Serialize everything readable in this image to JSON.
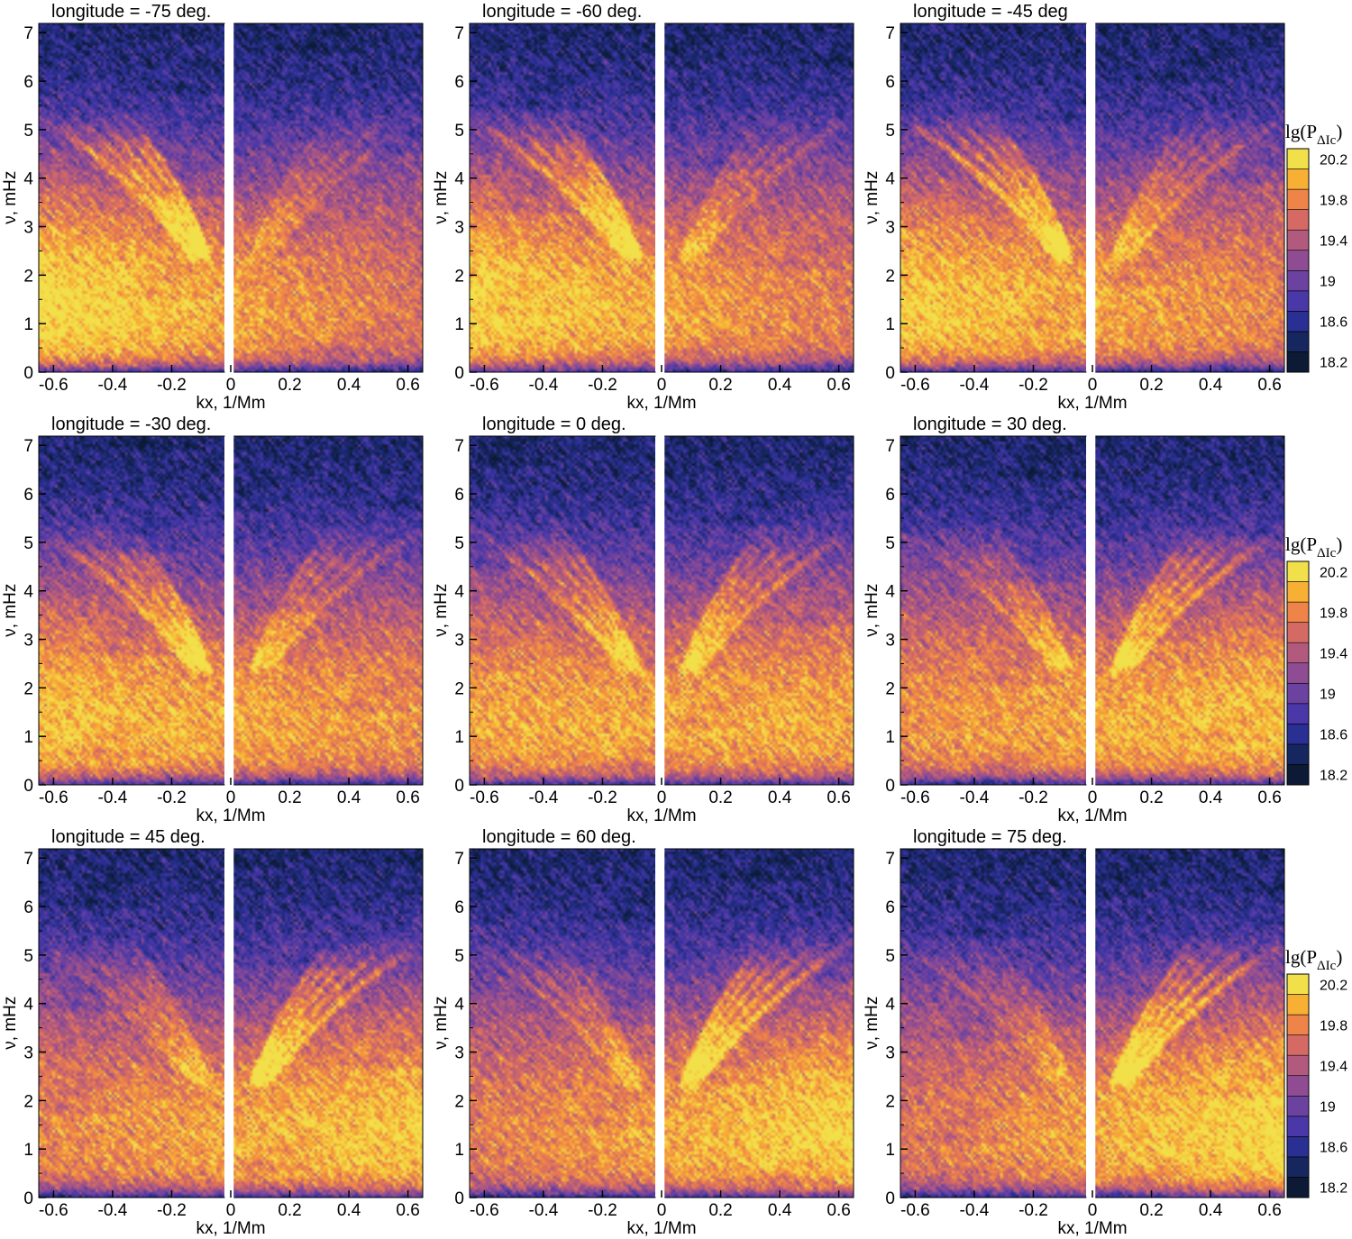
{
  "chart_data": {
    "type": "heatmap",
    "xlabel": "kx, 1/Mm",
    "ylabel": "ν, mHz",
    "xlim": [
      -0.65,
      0.65
    ],
    "ylim": [
      0,
      7.19
    ],
    "xticks": [
      "-0.6",
      "-0.4",
      "-0.2",
      "0",
      "0.2",
      "0.4",
      "0.6"
    ],
    "xtick_values": [
      -0.6,
      -0.4,
      -0.2,
      0,
      0.2,
      0.4,
      0.6
    ],
    "yticks": [
      "0",
      "1",
      "2",
      "3",
      "4",
      "5",
      "6",
      "7"
    ],
    "ytick_values": [
      0,
      1,
      2,
      3,
      4,
      5,
      6,
      7
    ],
    "gap_kx": [
      -0.02,
      0.01
    ],
    "colorbar": {
      "label": "lg(P",
      "label_sub": "ΔIc",
      "label_close": ")",
      "range": [
        18.1,
        20.3
      ],
      "levels": 11,
      "ticks": [
        "18.2",
        "18.6",
        "19",
        "19.4",
        "19.8",
        "20.2"
      ],
      "tick_values": [
        18.2,
        18.6,
        19.0,
        19.4,
        19.8,
        20.2
      ],
      "colors": [
        "#0c1a35",
        "#16265e",
        "#2a2f94",
        "#4a38a8",
        "#6c42a0",
        "#8f4c92",
        "#b25a7e",
        "#d56a64",
        "#ef8448",
        "#f8b034",
        "#f2e04a"
      ]
    },
    "panels": [
      {
        "title": "longitude = -75 deg.",
        "longitude": -75
      },
      {
        "title": "longitude = -60 deg.",
        "longitude": -60
      },
      {
        "title": "longitude = -45 deg",
        "longitude": -45
      },
      {
        "title": "longitude = -30 deg.",
        "longitude": -30
      },
      {
        "title": "longitude = 0 deg.",
        "longitude": 0
      },
      {
        "title": "longitude = 30 deg.",
        "longitude": 30
      },
      {
        "title": "longitude = 45 deg.",
        "longitude": 45
      },
      {
        "title": "longitude = 60 deg.",
        "longitude": 60
      },
      {
        "title": "longitude = 75 deg.",
        "longitude": 75
      }
    ]
  }
}
